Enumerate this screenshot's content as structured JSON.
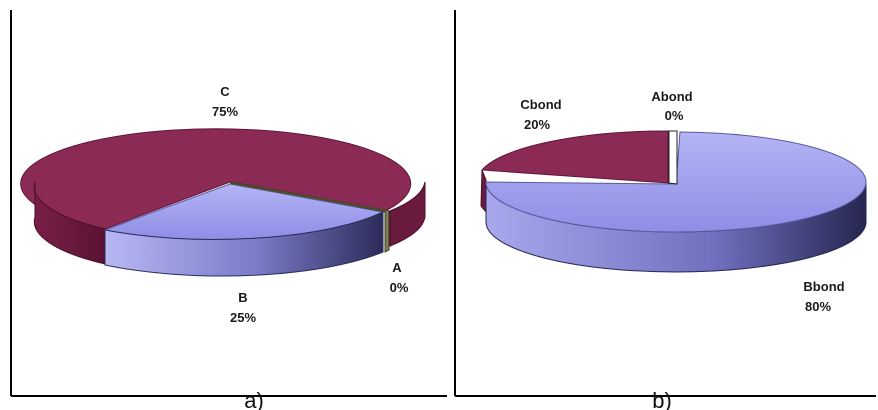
{
  "chart_data": [
    {
      "type": "pie",
      "caption": "a)",
      "slices": [
        {
          "label": "C",
          "pct_text": "75%",
          "value": 75,
          "color": "#8b2a55"
        },
        {
          "label": "B",
          "pct_text": "25%",
          "value": 25,
          "color": "#9a9af0"
        },
        {
          "label": "A",
          "pct_text": "0%",
          "value": 0,
          "color": "#8a8a60"
        }
      ]
    },
    {
      "type": "pie",
      "caption": "b)",
      "slices": [
        {
          "label": "Cbond",
          "pct_text": "20%",
          "value": 20,
          "color": "#8b2a55"
        },
        {
          "label": "Abond",
          "pct_text": "0%",
          "value": 0,
          "color": "#ffffff"
        },
        {
          "label": "Bbond",
          "pct_text": "80%",
          "value": 80,
          "color": "#9a9af0"
        }
      ]
    }
  ]
}
